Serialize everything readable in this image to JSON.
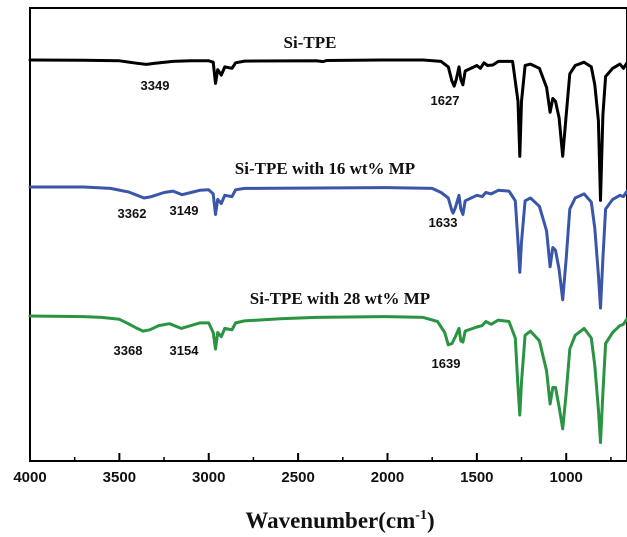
{
  "chart_data": {
    "type": "line",
    "title": "",
    "xlabel": "Wavenumber(cm",
    "xlabel_sup": "-1",
    "xlabel_close": ")",
    "ylabel": "",
    "xlim": [
      4000,
      660
    ],
    "x_reversed": true,
    "x_ticks": [
      4000,
      3500,
      3000,
      2500,
      2000,
      1500,
      1000
    ],
    "x_tick_labels": [
      "4000",
      "3500",
      "3000",
      "2500",
      "2000",
      "1500",
      "1000"
    ],
    "y_ticks_shown": false,
    "grid": false,
    "legend": "none",
    "series": [
      {
        "name": "Si-TPE",
        "color": "#000000",
        "peak_labels": [
          {
            "x": 3349,
            "text": "3349"
          },
          {
            "x": 1627,
            "text": "1627"
          }
        ],
        "points": [
          [
            4000,
            0
          ],
          [
            3700,
            -0.01
          ],
          [
            3500,
            -0.03
          ],
          [
            3400,
            -0.12
          ],
          [
            3349,
            -0.16
          ],
          [
            3300,
            -0.12
          ],
          [
            3200,
            -0.05
          ],
          [
            3100,
            -0.03
          ],
          [
            3000,
            -0.03
          ],
          [
            2975,
            -0.08
          ],
          [
            2962,
            -0.85
          ],
          [
            2950,
            -0.35
          ],
          [
            2930,
            -0.55
          ],
          [
            2910,
            -0.25
          ],
          [
            2870,
            -0.3
          ],
          [
            2850,
            -0.1
          ],
          [
            2800,
            -0.04
          ],
          [
            2400,
            -0.03
          ],
          [
            2360,
            -0.06
          ],
          [
            2340,
            -0.02
          ],
          [
            2000,
            0
          ],
          [
            1800,
            0
          ],
          [
            1700,
            -0.05
          ],
          [
            1660,
            -0.25
          ],
          [
            1640,
            -0.75
          ],
          [
            1627,
            -0.95
          ],
          [
            1615,
            -0.7
          ],
          [
            1600,
            -0.25
          ],
          [
            1590,
            -0.7
          ],
          [
            1578,
            -0.9
          ],
          [
            1565,
            -0.4
          ],
          [
            1500,
            -0.2
          ],
          [
            1480,
            -0.3
          ],
          [
            1460,
            -0.1
          ],
          [
            1440,
            -0.2
          ],
          [
            1410,
            -0.18
          ],
          [
            1380,
            -0.05
          ],
          [
            1300,
            -0.05
          ],
          [
            1270,
            -1.5
          ],
          [
            1260,
            -3.5
          ],
          [
            1250,
            -1.5
          ],
          [
            1230,
            -0.2
          ],
          [
            1200,
            -0.15
          ],
          [
            1150,
            -0.3
          ],
          [
            1110,
            -1.0
          ],
          [
            1090,
            -1.9
          ],
          [
            1075,
            -1.4
          ],
          [
            1060,
            -1.5
          ],
          [
            1040,
            -2.1
          ],
          [
            1020,
            -3.5
          ],
          [
            1000,
            -2.0
          ],
          [
            980,
            -0.5
          ],
          [
            950,
            -0.2
          ],
          [
            900,
            -0.08
          ],
          [
            860,
            -0.25
          ],
          [
            840,
            -0.9
          ],
          [
            820,
            -2.2
          ],
          [
            808,
            -5.1
          ],
          [
            795,
            -2.0
          ],
          [
            780,
            -0.6
          ],
          [
            740,
            -0.3
          ],
          [
            700,
            -0.15
          ],
          [
            680,
            -0.3
          ],
          [
            660,
            -0.1
          ]
        ]
      },
      {
        "name": "Si-TPE with 16 wt% MP",
        "color": "#3a56a8",
        "peak_labels": [
          {
            "x": 3362,
            "text": "3362"
          },
          {
            "x": 3149,
            "text": "3149"
          },
          {
            "x": 1633,
            "text": "1633"
          }
        ],
        "points": [
          [
            4000,
            0
          ],
          [
            3700,
            0
          ],
          [
            3550,
            -0.05
          ],
          [
            3450,
            -0.18
          ],
          [
            3400,
            -0.3
          ],
          [
            3362,
            -0.4
          ],
          [
            3320,
            -0.35
          ],
          [
            3250,
            -0.2
          ],
          [
            3200,
            -0.15
          ],
          [
            3149,
            -0.28
          ],
          [
            3100,
            -0.2
          ],
          [
            3050,
            -0.12
          ],
          [
            3000,
            -0.1
          ],
          [
            2975,
            -0.25
          ],
          [
            2962,
            -1.0
          ],
          [
            2950,
            -0.45
          ],
          [
            2930,
            -0.6
          ],
          [
            2910,
            -0.3
          ],
          [
            2870,
            -0.35
          ],
          [
            2850,
            -0.1
          ],
          [
            2800,
            -0.05
          ],
          [
            2000,
            -0.02
          ],
          [
            1750,
            -0.05
          ],
          [
            1700,
            -0.2
          ],
          [
            1660,
            -0.4
          ],
          [
            1640,
            -0.85
          ],
          [
            1633,
            -0.95
          ],
          [
            1620,
            -0.75
          ],
          [
            1600,
            -0.3
          ],
          [
            1590,
            -0.8
          ],
          [
            1578,
            -1.0
          ],
          [
            1565,
            -0.5
          ],
          [
            1500,
            -0.3
          ],
          [
            1470,
            -0.35
          ],
          [
            1450,
            -0.2
          ],
          [
            1420,
            -0.25
          ],
          [
            1380,
            -0.12
          ],
          [
            1320,
            -0.15
          ],
          [
            1285,
            -0.5
          ],
          [
            1270,
            -2.0
          ],
          [
            1260,
            -3.1
          ],
          [
            1250,
            -2.0
          ],
          [
            1230,
            -0.5
          ],
          [
            1200,
            -0.4
          ],
          [
            1150,
            -0.7
          ],
          [
            1110,
            -1.6
          ],
          [
            1090,
            -2.9
          ],
          [
            1075,
            -2.2
          ],
          [
            1060,
            -2.3
          ],
          [
            1040,
            -3.0
          ],
          [
            1020,
            -4.1
          ],
          [
            1000,
            -2.6
          ],
          [
            980,
            -0.8
          ],
          [
            950,
            -0.4
          ],
          [
            900,
            -0.25
          ],
          [
            860,
            -0.55
          ],
          [
            840,
            -1.5
          ],
          [
            820,
            -3.2
          ],
          [
            808,
            -4.4
          ],
          [
            795,
            -2.6
          ],
          [
            780,
            -0.8
          ],
          [
            740,
            -0.45
          ],
          [
            700,
            -0.3
          ],
          [
            680,
            -0.35
          ],
          [
            660,
            -0.15
          ]
        ]
      },
      {
        "name": "Si-TPE with 28 wt% MP",
        "color": "#2b9443",
        "peak_labels": [
          {
            "x": 3368,
            "text": "3368"
          },
          {
            "x": 3154,
            "text": "3154"
          },
          {
            "x": 1639,
            "text": "1639"
          }
        ],
        "points": [
          [
            4000,
            0
          ],
          [
            3700,
            -0.02
          ],
          [
            3600,
            -0.05
          ],
          [
            3500,
            -0.12
          ],
          [
            3450,
            -0.28
          ],
          [
            3400,
            -0.45
          ],
          [
            3368,
            -0.55
          ],
          [
            3330,
            -0.5
          ],
          [
            3280,
            -0.35
          ],
          [
            3220,
            -0.28
          ],
          [
            3154,
            -0.45
          ],
          [
            3100,
            -0.35
          ],
          [
            3050,
            -0.25
          ],
          [
            3000,
            -0.25
          ],
          [
            2975,
            -0.6
          ],
          [
            2962,
            -1.2
          ],
          [
            2950,
            -0.6
          ],
          [
            2930,
            -0.75
          ],
          [
            2910,
            -0.45
          ],
          [
            2870,
            -0.5
          ],
          [
            2850,
            -0.25
          ],
          [
            2800,
            -0.18
          ],
          [
            2600,
            -0.1
          ],
          [
            2400,
            -0.05
          ],
          [
            2000,
            -0.02
          ],
          [
            1800,
            -0.05
          ],
          [
            1720,
            -0.2
          ],
          [
            1680,
            -0.6
          ],
          [
            1660,
            -1.05
          ],
          [
            1639,
            -1.0
          ],
          [
            1620,
            -0.75
          ],
          [
            1600,
            -0.45
          ],
          [
            1590,
            -0.9
          ],
          [
            1578,
            -0.95
          ],
          [
            1565,
            -0.55
          ],
          [
            1500,
            -0.4
          ],
          [
            1470,
            -0.35
          ],
          [
            1450,
            -0.2
          ],
          [
            1420,
            -0.3
          ],
          [
            1380,
            -0.15
          ],
          [
            1320,
            -0.2
          ],
          [
            1285,
            -0.8
          ],
          [
            1270,
            -2.6
          ],
          [
            1260,
            -3.6
          ],
          [
            1250,
            -2.4
          ],
          [
            1230,
            -0.7
          ],
          [
            1200,
            -0.55
          ],
          [
            1150,
            -0.9
          ],
          [
            1110,
            -2.0
          ],
          [
            1090,
            -3.2
          ],
          [
            1075,
            -2.6
          ],
          [
            1060,
            -2.6
          ],
          [
            1040,
            -3.3
          ],
          [
            1020,
            -4.1
          ],
          [
            1000,
            -2.8
          ],
          [
            980,
            -1.2
          ],
          [
            950,
            -0.7
          ],
          [
            900,
            -0.45
          ],
          [
            860,
            -0.8
          ],
          [
            840,
            -1.8
          ],
          [
            820,
            -3.4
          ],
          [
            808,
            -4.6
          ],
          [
            795,
            -2.8
          ],
          [
            780,
            -1.0
          ],
          [
            740,
            -0.6
          ],
          [
            700,
            -0.35
          ],
          [
            680,
            -0.3
          ],
          [
            660,
            -0.1
          ]
        ]
      }
    ]
  }
}
